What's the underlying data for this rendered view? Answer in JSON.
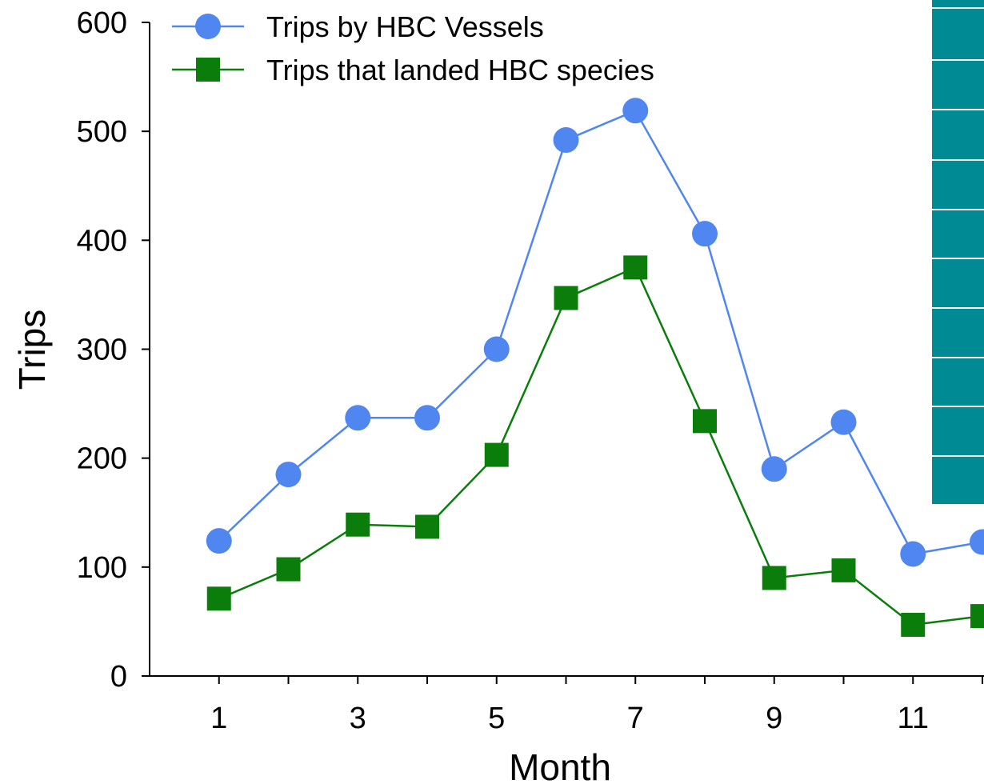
{
  "chart_data": {
    "type": "line",
    "xlabel": "Month",
    "ylabel": "Trips",
    "xlim": [
      0,
      12
    ],
    "ylim": [
      0,
      600
    ],
    "x_ticks": [
      1,
      3,
      5,
      7,
      9,
      11
    ],
    "y_ticks": [
      0,
      100,
      200,
      300,
      400,
      500,
      600
    ],
    "legend_position": "top-left",
    "grid": false,
    "x": [
      1,
      2,
      3,
      4,
      5,
      6,
      7,
      8,
      9,
      10,
      11,
      12
    ],
    "series": [
      {
        "name": "Trips by HBC Vessels",
        "color": "#4f86f0",
        "marker": "circle",
        "values": [
          124,
          185,
          237,
          237,
          300,
          492,
          519,
          406,
          190,
          233,
          112,
          123
        ]
      },
      {
        "name": "Trips that landed HBC species",
        "color": "#0a7d0a",
        "marker": "square",
        "values": [
          71,
          98,
          139,
          137,
          203,
          347,
          375,
          234,
          90,
          97,
          47,
          55
        ]
      }
    ]
  },
  "overlay": {
    "color": "#008a94"
  }
}
